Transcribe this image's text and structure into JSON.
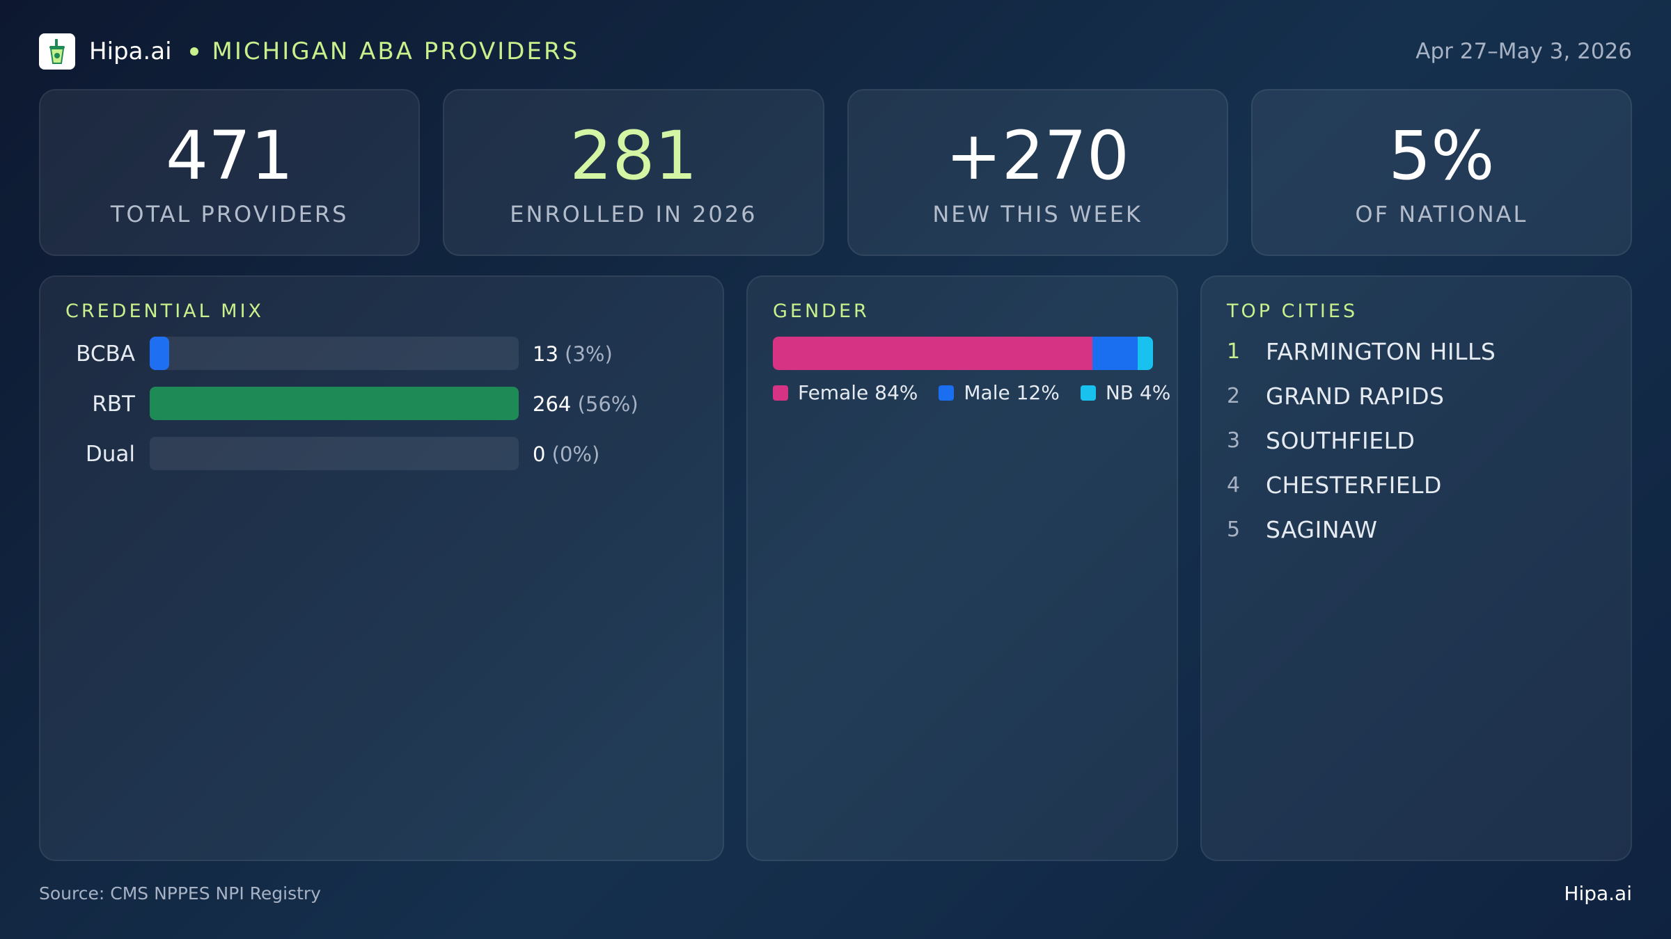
{
  "header": {
    "logo_icon": "juice-cup-icon",
    "brand": "Hipa.ai",
    "title": "MICHIGAN ABA PROVIDERS",
    "date_range": "Apr 27–May 3, 2026"
  },
  "kpis": [
    {
      "value": "471",
      "label": "TOTAL PROVIDERS",
      "accent": false
    },
    {
      "value": "281",
      "label": "ENROLLED IN 2026",
      "accent": true
    },
    {
      "value": "+270",
      "label": "NEW THIS WEEK",
      "accent": false
    },
    {
      "value": "5%",
      "label": "OF NATIONAL",
      "accent": false
    }
  ],
  "credential_panel": {
    "title": "CREDENTIAL MIX"
  },
  "gender_panel": {
    "title": "GENDER"
  },
  "cities_panel": {
    "title": "TOP CITIES"
  },
  "chart_data": [
    {
      "type": "bar",
      "orientation": "horizontal",
      "title": "CREDENTIAL MIX",
      "categories": [
        "BCBA",
        "RBT",
        "Dual"
      ],
      "values": [
        13,
        264,
        0
      ],
      "percent_labels": [
        "(3%)",
        "(56%)",
        "(0%)"
      ],
      "colors": [
        "#1f6ff2",
        "#1e8a55",
        "#1f6ff2"
      ],
      "xlim": [
        0,
        264
      ]
    },
    {
      "type": "bar",
      "orientation": "horizontal-stacked",
      "title": "GENDER",
      "series": [
        {
          "name": "Female",
          "value": 84,
          "label": "Female 84%",
          "color": "#d63384"
        },
        {
          "name": "Male",
          "value": 12,
          "label": "Male 12%",
          "color": "#1a6ff0"
        },
        {
          "name": "NB",
          "value": 4,
          "label": "NB 4%",
          "color": "#19c2ee"
        }
      ],
      "legend": "bottom"
    },
    {
      "type": "table",
      "title": "TOP CITIES",
      "rows": [
        {
          "rank": "1",
          "city": "FARMINGTON HILLS"
        },
        {
          "rank": "2",
          "city": "GRAND RAPIDS"
        },
        {
          "rank": "3",
          "city": "SOUTHFIELD"
        },
        {
          "rank": "4",
          "city": "CHESTERFIELD"
        },
        {
          "rank": "5",
          "city": "SAGINAW"
        }
      ]
    }
  ],
  "footer": {
    "source": "Source: CMS NPPES NPI Registry",
    "brand": "Hipa.ai"
  }
}
